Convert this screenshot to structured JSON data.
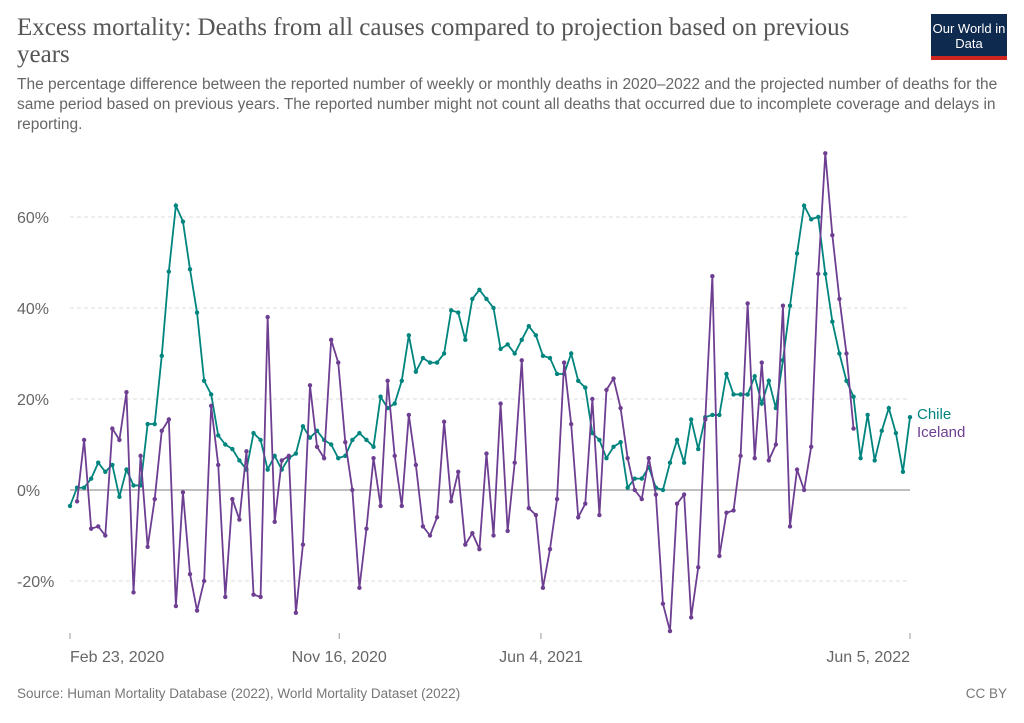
{
  "header": {
    "title": "Excess mortality: Deaths from all causes compared to projection based on previous years",
    "subtitle": "The percentage difference between the reported number of weekly or monthly deaths in 2020–2022 and the projected number of deaths for the same period based on previous years. The reported number might not count all deaths that occurred due to incomplete coverage and delays in reporting.",
    "logo_text": "Our World in Data"
  },
  "footer": {
    "source": "Source: Human Mortality Database (2022), World Mortality Dataset (2022)",
    "license": "CC BY"
  },
  "colors": {
    "chile": "#00847e",
    "iceland": "#6d3e91"
  },
  "chart_data": {
    "type": "line",
    "x_start": "2020-02-23",
    "frequency": "weekly",
    "ylim": [
      -31,
      75
    ],
    "yticks": [
      -20,
      0,
      20,
      40,
      60
    ],
    "ytick_labels": [
      "-20%",
      "0%",
      "20%",
      "40%",
      "60%"
    ],
    "xticks": [
      "2020-02-23",
      "2020-11-16",
      "2021-06-04",
      "2022-06-05"
    ],
    "xtick_labels": [
      "Feb 23, 2020",
      "Nov 16, 2020",
      "Jun 4, 2021",
      "Jun 5, 2022"
    ],
    "grid": "horizontal dashed",
    "legend": "right end labels",
    "series": [
      {
        "name": "Chile",
        "color": "#00847e",
        "start_week": 0,
        "values": [
          -3.5,
          0.5,
          0.5,
          2.5,
          6,
          4,
          5.5,
          -1.5,
          4.5,
          1,
          1,
          14.5,
          14.5,
          29.5,
          48,
          62.5,
          59,
          48.5,
          39,
          24,
          21,
          12,
          10,
          9,
          6.5,
          4.5,
          12.5,
          11,
          4.5,
          7.5,
          4.5,
          7,
          8,
          14,
          11.5,
          13,
          11,
          10,
          7,
          7.5,
          11,
          12.5,
          11,
          9.5,
          20.5,
          18,
          19,
          24,
          34,
          26,
          29,
          28,
          28,
          30,
          39.5,
          39,
          33,
          42,
          44,
          42,
          40,
          31,
          32,
          30,
          33,
          36,
          34,
          29.5,
          29,
          25.5,
          25.5,
          30,
          24,
          22.5,
          12.5,
          11,
          7,
          9.5,
          10.5,
          0.5,
          2.5,
          2.5,
          5,
          0.5,
          0,
          6,
          11,
          6,
          15.5,
          9,
          16,
          16.5,
          16.5,
          25.5,
          21,
          21,
          21,
          25,
          19,
          24,
          18,
          28.5,
          40.5,
          52,
          62.5,
          59.5,
          60,
          47.5,
          37,
          30,
          24,
          20.5,
          7,
          16.5,
          6.5,
          13,
          18,
          12.5,
          4,
          16
        ]
      },
      {
        "name": "Iceland",
        "color": "#6d3e91",
        "start_week": 1,
        "values": [
          -2.5,
          11,
          -8.5,
          -8,
          -10,
          13.5,
          11,
          21.5,
          -22.5,
          7.5,
          -12.5,
          -2,
          13,
          15.5,
          -25.5,
          -0.5,
          -18.5,
          -26.5,
          -20,
          18.5,
          5.5,
          -23.5,
          -2,
          -6.5,
          8.5,
          -23,
          -23.5,
          38,
          -7,
          6.5,
          7.5,
          -27,
          -12,
          23,
          9.5,
          7,
          33,
          28,
          10.5,
          0,
          -21.5,
          -8.5,
          7,
          -3.5,
          24,
          7.5,
          -3.5,
          16.5,
          5.5,
          -8,
          -10,
          -6,
          15,
          -2.5,
          4,
          -12,
          -9.5,
          -13,
          8,
          -10,
          19,
          -9,
          6,
          28.5,
          -4,
          -5.5,
          -21.5,
          -13,
          -2,
          28,
          14.5,
          -6,
          -3,
          20,
          -5.5,
          22,
          24.5,
          18,
          7,
          0,
          -2,
          7,
          -1,
          -25,
          -31,
          -3,
          -1,
          -28,
          -17,
          15.5,
          47,
          -14.5,
          -5,
          -4.5,
          7.5,
          41,
          7,
          28,
          6.5,
          10,
          40.5,
          -8,
          4.5,
          0,
          9.5,
          47.5,
          74,
          56,
          42,
          30,
          13.5
        ]
      }
    ]
  }
}
